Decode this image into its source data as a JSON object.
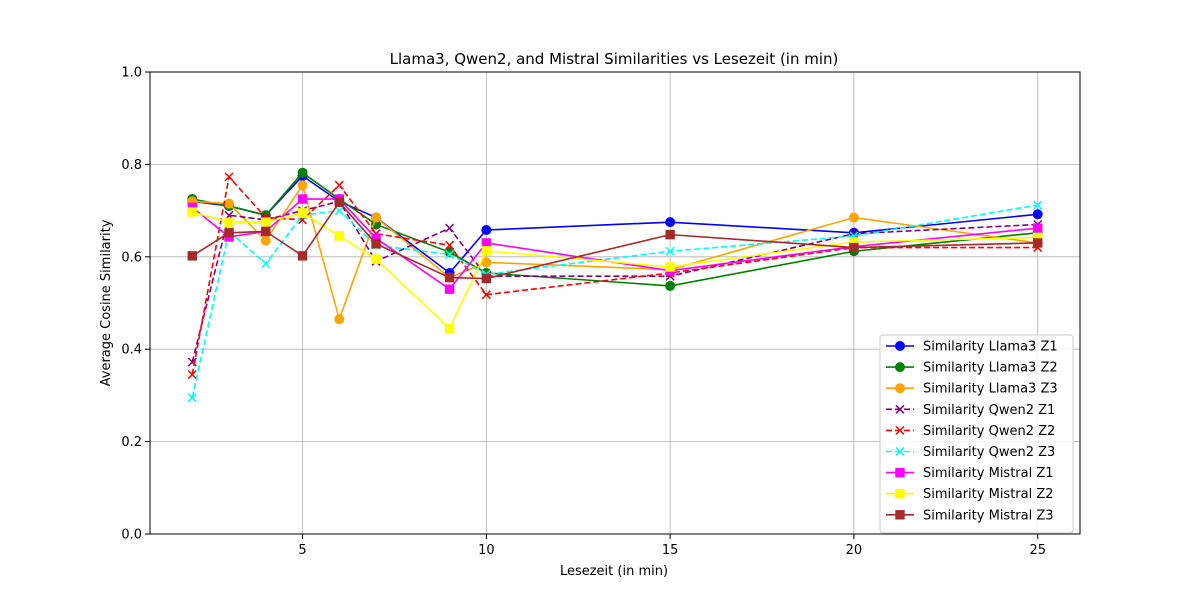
{
  "chart_data": {
    "type": "line",
    "title": "Llama3, Qwen2, and Mistral Similarities vs Lesezeit (in min)",
    "xlabel": "Lesezeit (in min)",
    "ylabel": "Average Cosine Similarity",
    "xlim": [
      0.85,
      26.15
    ],
    "ylim": [
      0.0,
      1.0
    ],
    "xticks": [
      5,
      10,
      15,
      20,
      25
    ],
    "yticks": [
      0.0,
      0.2,
      0.4,
      0.6,
      0.8,
      1.0
    ],
    "xtick_labels": [
      "5",
      "10",
      "15",
      "20",
      "25"
    ],
    "ytick_labels": [
      "0.0",
      "0.2",
      "0.4",
      "0.6",
      "0.8",
      "1.0"
    ],
    "grid": true,
    "legend_position": "lower-right",
    "x": [
      2,
      3,
      4,
      5,
      6,
      7,
      9,
      10,
      15,
      20,
      25
    ],
    "series": [
      {
        "name": "Similarity Llama3 Z1",
        "color": "#0000ff",
        "marker": "circle",
        "dash": "solid",
        "values": [
          0.72,
          0.71,
          0.69,
          0.775,
          0.72,
          0.685,
          0.565,
          0.658,
          0.675,
          0.652,
          0.692
        ]
      },
      {
        "name": "Similarity Llama3 Z2",
        "color": "#008000",
        "marker": "circle",
        "dash": "solid",
        "values": [
          0.725,
          0.71,
          0.69,
          0.782,
          0.725,
          0.67,
          0.61,
          0.565,
          0.537,
          0.612,
          0.652
        ]
      },
      {
        "name": "Similarity Llama3 Z3",
        "color": "#ffa500",
        "marker": "circle",
        "dash": "solid",
        "values": [
          0.72,
          0.715,
          0.635,
          0.755,
          0.465,
          0.685,
          0.555,
          0.588,
          0.572,
          0.685,
          0.63
        ]
      },
      {
        "name": "Similarity Qwen2 Z1",
        "color": "#800080",
        "marker": "x",
        "dash": "dashed",
        "values": [
          0.372,
          0.69,
          0.68,
          0.7,
          0.72,
          0.59,
          0.662,
          0.558,
          0.558,
          0.65,
          0.67
        ]
      },
      {
        "name": "Similarity Qwen2 Z2",
        "color": "#ff0000",
        "marker": "x",
        "dash": "dashed",
        "values": [
          0.345,
          0.773,
          0.685,
          0.68,
          0.755,
          0.65,
          0.625,
          0.518,
          0.565,
          0.62,
          0.62
        ]
      },
      {
        "name": "Similarity Qwen2 Z3",
        "color": "#00ffff",
        "marker": "x",
        "dash": "dashed",
        "values": [
          0.295,
          0.655,
          0.585,
          0.69,
          0.7,
          0.625,
          0.605,
          0.562,
          0.612,
          0.645,
          0.712
        ]
      },
      {
        "name": "Similarity Mistral Z1",
        "color": "#ff00ff",
        "marker": "square",
        "dash": "solid",
        "values": [
          0.707,
          0.643,
          0.655,
          0.725,
          0.725,
          0.64,
          0.53,
          0.63,
          0.57,
          0.622,
          0.662
        ]
      },
      {
        "name": "Similarity Mistral Z2",
        "color": "#ffff00",
        "marker": "square",
        "dash": "solid",
        "values": [
          0.697,
          0.675,
          0.675,
          0.695,
          0.645,
          0.595,
          0.445,
          0.613,
          0.578,
          0.632,
          0.642
        ]
      },
      {
        "name": "Similarity Mistral Z3",
        "color": "#a52a2a",
        "marker": "square",
        "dash": "solid",
        "values": [
          0.602,
          0.652,
          0.655,
          0.602,
          0.718,
          0.628,
          0.555,
          0.553,
          0.648,
          0.62,
          0.63
        ]
      }
    ]
  }
}
